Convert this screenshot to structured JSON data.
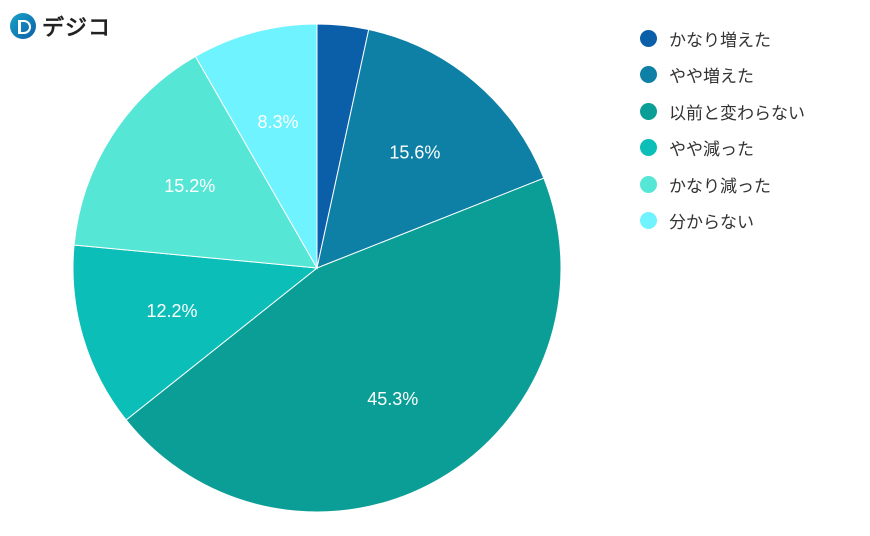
{
  "logo": {
    "text": "デジコ"
  },
  "chart_data": {
    "type": "pie",
    "categories": [
      "かなり増えた",
      "やや増えた",
      "以前と変わらない",
      "やや減った",
      "かなり減った",
      "分からない"
    ],
    "values": [
      3.4,
      15.6,
      45.3,
      12.2,
      15.2,
      8.3
    ],
    "labels": [
      "",
      "15.6%",
      "45.3%",
      "12.2%",
      "15.2%",
      "8.3%"
    ],
    "colors": [
      "#0B5EA8",
      "#0E80A6",
      "#0A9E96",
      "#0BBFB8",
      "#55E6D6",
      "#6FF3FF"
    ],
    "legend_position": "right",
    "start": "top",
    "direction": "clockwise"
  }
}
